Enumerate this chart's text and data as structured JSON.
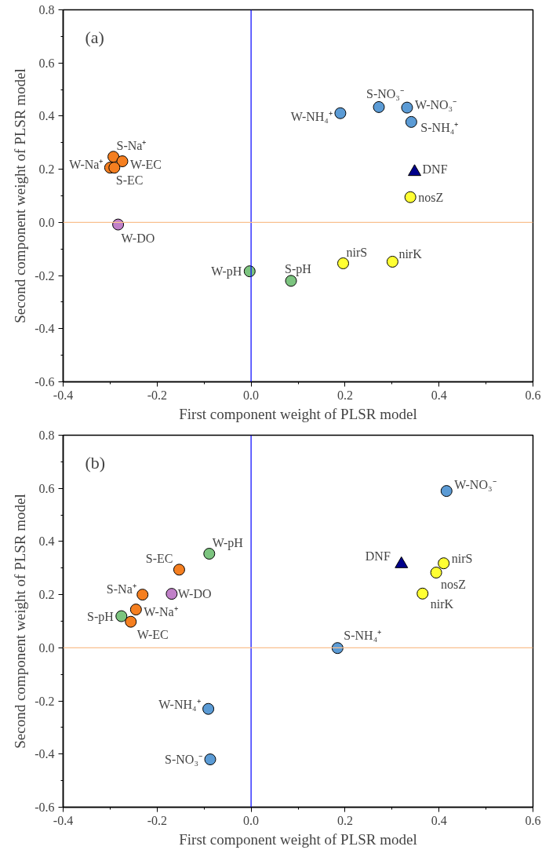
{
  "chart_data": [
    {
      "type": "scatter",
      "xlabel": "First component weight of PLSR model",
      "ylabel": "Second component weight of PLSR model",
      "xlim": [
        -0.4,
        0.6
      ],
      "ylim": [
        -0.6,
        0.8
      ],
      "xticks": [
        -0.4,
        -0.2,
        {
          "value": 0,
          "label": "0.0"
        },
        0.2,
        0.4,
        0.6
      ],
      "yticks": [
        -0.6,
        -0.4,
        -0.2,
        {
          "value": 0,
          "label": "0.0"
        },
        0.2,
        0.4,
        0.6,
        0.8
      ],
      "grid": false,
      "marker": "circle",
      "series": [
        {
          "color": "#f57f20",
          "x": [
            -0.293,
            -0.3,
            -0.274,
            -0.291
          ],
          "values": [
            0.247,
            0.206,
            0.23,
            0.206
          ]
        },
        {
          "color": "#c080c8",
          "x": [
            -0.283
          ],
          "values": [
            -0.008
          ]
        },
        {
          "color": "#7cc47f",
          "x": [
            -0.003,
            0.085
          ],
          "values": [
            -0.184,
            -0.22
          ]
        },
        {
          "color": "#ffff33",
          "x": [
            0.196,
            0.301,
            0.339
          ],
          "values": [
            -0.154,
            -0.148,
            0.095
          ]
        },
        {
          "color": "#00008b",
          "marker": "triangle",
          "x": [
            0.348
          ],
          "values": [
            0.19
          ]
        },
        {
          "color": "#5b9bd5",
          "x": [
            0.19,
            0.272,
            0.332,
            0.341
          ],
          "values": [
            0.411,
            0.434,
            0.432,
            0.378
          ]
        }
      ],
      "ref_lines": [
        {
          "axis": "x",
          "value": 0,
          "color": "#0000ff"
        },
        {
          "axis": "y",
          "value": 0,
          "color": "#f9c08f"
        }
      ],
      "annotations": [
        "(a)",
        {
          "text": "S-Na⁺",
          "x": -0.293,
          "y": 0.247
        },
        {
          "text": "W-Na⁺",
          "x": -0.3,
          "y": 0.206
        },
        {
          "text": "W-EC",
          "x": -0.274,
          "y": 0.23
        },
        {
          "text": "S-EC",
          "x": -0.291,
          "y": 0.206
        },
        {
          "text": "W-DO",
          "x": -0.283,
          "y": -0.008
        },
        {
          "text": "W-pH",
          "x": -0.003,
          "y": -0.184
        },
        {
          "text": "S-pH",
          "x": 0.085,
          "y": -0.22
        },
        {
          "text": "nirS",
          "x": 0.196,
          "y": -0.154
        },
        {
          "text": "nirK",
          "x": 0.301,
          "y": -0.148
        },
        {
          "text": "nosZ",
          "x": 0.339,
          "y": 0.095
        },
        {
          "text": "DNF",
          "x": 0.348,
          "y": 0.19
        },
        {
          "text": "W-NH₄⁺",
          "x": 0.19,
          "y": 0.411
        },
        {
          "text": "S-NO₃⁻",
          "x": 0.272,
          "y": 0.434
        },
        {
          "text": "W-NO₃⁻",
          "x": 0.332,
          "y": 0.432
        },
        {
          "text": "S-NH₄⁺",
          "x": 0.341,
          "y": 0.378
        }
      ]
    },
    {
      "type": "scatter",
      "xlabel": "First component weight of PLSR model",
      "ylabel": "Second component weight of PLSR model",
      "xlim": [
        -0.4,
        0.6
      ],
      "ylim": [
        -0.6,
        0.8
      ],
      "xticks": [
        -0.4,
        -0.2,
        {
          "value": 0,
          "label": "0.0"
        },
        0.2,
        0.4,
        0.6
      ],
      "yticks": [
        -0.6,
        -0.4,
        -0.2,
        {
          "value": 0,
          "label": "0.0"
        },
        0.2,
        0.4,
        0.6,
        0.8
      ],
      "grid": false,
      "marker": "circle",
      "series": [
        {
          "color": "#5b9bd5",
          "x": [
            0.416,
            0.184,
            -0.091,
            -0.087
          ],
          "values": [
            0.59,
            -0.001,
            -0.23,
            -0.42
          ]
        },
        {
          "color": "#00008b",
          "marker": "triangle",
          "x": [
            0.32
          ],
          "values": [
            0.315
          ]
        },
        {
          "color": "#ffff33",
          "x": [
            0.41,
            0.394,
            0.365
          ],
          "values": [
            0.318,
            0.283,
            0.204
          ]
        },
        {
          "color": "#7cc47f",
          "x": [
            -0.089,
            -0.276
          ],
          "values": [
            0.354,
            0.119
          ]
        },
        {
          "color": "#f57f20",
          "x": [
            -0.153,
            -0.231,
            -0.245,
            -0.256
          ],
          "values": [
            0.294,
            0.2,
            0.144,
            0.098
          ]
        },
        {
          "color": "#c080c8",
          "x": [
            -0.169
          ],
          "values": [
            0.203
          ]
        }
      ],
      "ref_lines": [
        {
          "axis": "x",
          "value": 0,
          "color": "#0000ff"
        },
        {
          "axis": "y",
          "value": 0,
          "color": "#f9c08f"
        }
      ],
      "annotations": [
        "(b)",
        {
          "text": "W-NO₃⁻",
          "x": 0.416,
          "y": 0.59
        },
        {
          "text": "DNF",
          "x": 0.32,
          "y": 0.315
        },
        {
          "text": "nirS",
          "x": 0.41,
          "y": 0.318
        },
        {
          "text": "nosZ",
          "x": 0.394,
          "y": 0.283
        },
        {
          "text": "nirK",
          "x": 0.365,
          "y": 0.204
        },
        {
          "text": "S-NH₄⁺",
          "x": 0.184,
          "y": -0.001
        },
        {
          "text": "W-pH",
          "x": -0.089,
          "y": 0.354
        },
        {
          "text": "S-EC",
          "x": -0.153,
          "y": 0.294
        },
        {
          "text": "S-Na⁺",
          "x": -0.231,
          "y": 0.2
        },
        {
          "text": "W-DO",
          "x": -0.169,
          "y": 0.203
        },
        {
          "text": "W-Na⁺",
          "x": -0.245,
          "y": 0.144
        },
        {
          "text": "S-pH",
          "x": -0.276,
          "y": 0.119
        },
        {
          "text": "W-EC",
          "x": -0.256,
          "y": 0.098
        },
        {
          "text": "W-NH₄⁺",
          "x": -0.091,
          "y": -0.23
        },
        {
          "text": "S-NO₃⁻",
          "x": -0.087,
          "y": -0.42
        }
      ]
    }
  ]
}
